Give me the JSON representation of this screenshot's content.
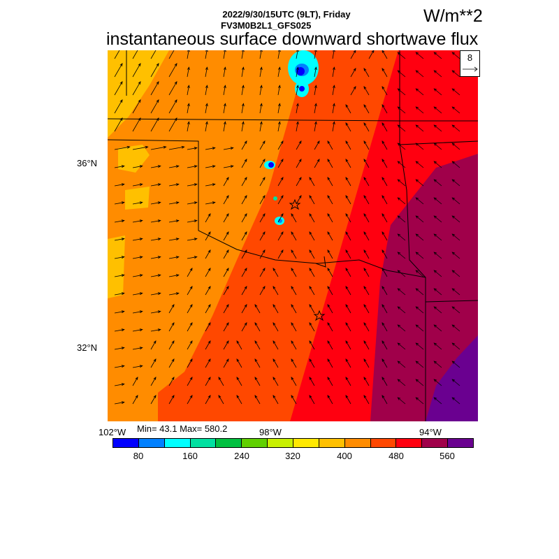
{
  "header": {
    "datetime": "2022/9/30/15UTC (9LT), Friday",
    "model": "FV3M0B2L1_GFS025",
    "title": "instantaneous surface downward shortwave flux",
    "units": "W/m**2"
  },
  "reference_vector": {
    "label": "8"
  },
  "axes": {
    "lat_labels": [
      "36°N",
      "32°N"
    ],
    "lon_labels": [
      "102°W",
      "98°W",
      "94°W"
    ]
  },
  "stats": "Min= 43.1 Max= 580.2",
  "colorbar": {
    "colors": [
      "#0000ff",
      "#0080ff",
      "#00ffff",
      "#00e0a0",
      "#00c040",
      "#60d000",
      "#c8f000",
      "#ffe800",
      "#ffc000",
      "#ff8c00",
      "#ff4800",
      "#ff0010",
      "#a0004a",
      "#6a0090"
    ],
    "labels": [
      "80",
      "160",
      "240",
      "320",
      "400",
      "480",
      "560"
    ]
  },
  "field_colors": {
    "yellow_orange": "#ffc000",
    "orange": "#ff8c00",
    "red_orange": "#ff4800",
    "red": "#ff0010",
    "maroon": "#a0004a",
    "purple": "#6a0090",
    "cloud_blue": "#0080ff",
    "cloud_cyan": "#00ffff"
  }
}
